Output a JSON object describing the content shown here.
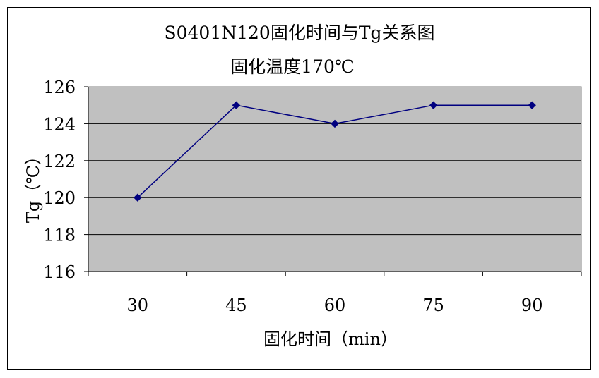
{
  "chart_data": {
    "type": "line",
    "title": "S0401N120固化时间与Tg关系图",
    "subtitle": "固化温度170℃",
    "xlabel": "固化时间（min）",
    "ylabel": "Tg（℃）",
    "categories": [
      "30",
      "45",
      "60",
      "75",
      "90"
    ],
    "series": [
      {
        "values": [
          120,
          125,
          124,
          125,
          125
        ]
      }
    ],
    "ylim": [
      116,
      126
    ],
    "yticks": [
      "116",
      "118",
      "120",
      "122",
      "124",
      "126"
    ],
    "grid": true,
    "plot_background": "#c0c0c0",
    "line_color": "#000080"
  }
}
